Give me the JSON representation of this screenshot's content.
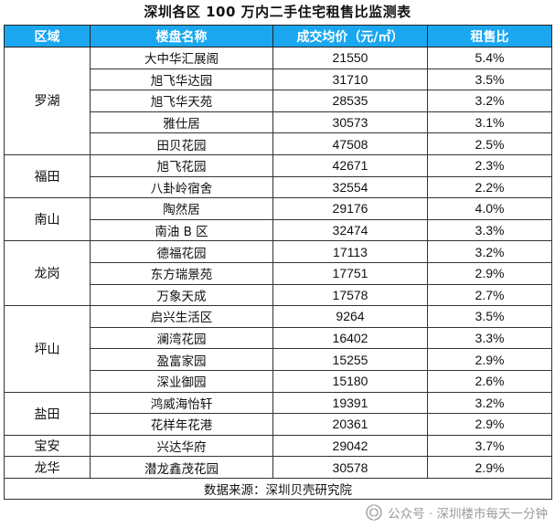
{
  "title": "深圳各区 100 万内二手住宅租售比监测表",
  "columns": {
    "district": "区域",
    "estate": "楼盘名称",
    "price": "成交均价（元/㎡）",
    "ratio": "租售比"
  },
  "rows": [
    {
      "district": "罗湖",
      "estate": "大中华汇展阁",
      "price": "21550",
      "ratio": "5.4%"
    },
    {
      "district": "罗湖",
      "estate": "旭飞华达园",
      "price": "31710",
      "ratio": "3.5%"
    },
    {
      "district": "罗湖",
      "estate": "旭飞华天苑",
      "price": "28535",
      "ratio": "3.2%"
    },
    {
      "district": "罗湖",
      "estate": "雅仕居",
      "price": "30573",
      "ratio": "3.1%"
    },
    {
      "district": "罗湖",
      "estate": "田贝花园",
      "price": "47508",
      "ratio": "2.5%"
    },
    {
      "district": "福田",
      "estate": "旭飞花园",
      "price": "42671",
      "ratio": "2.3%"
    },
    {
      "district": "福田",
      "estate": "八卦岭宿舍",
      "price": "32554",
      "ratio": "2.2%"
    },
    {
      "district": "南山",
      "estate": "陶然居",
      "price": "29176",
      "ratio": "4.0%"
    },
    {
      "district": "南山",
      "estate": "南油 B 区",
      "price": "32474",
      "ratio": "3.3%"
    },
    {
      "district": "龙岗",
      "estate": "德福花园",
      "price": "17113",
      "ratio": "3.2%"
    },
    {
      "district": "龙岗",
      "estate": "东方瑞景苑",
      "price": "17751",
      "ratio": "2.9%"
    },
    {
      "district": "龙岗",
      "estate": "万象天成",
      "price": "17578",
      "ratio": "2.7%"
    },
    {
      "district": "坪山",
      "estate": "启兴生活区",
      "price": "9264",
      "ratio": "3.5%"
    },
    {
      "district": "坪山",
      "estate": "澜湾花园",
      "price": "16402",
      "ratio": "3.3%"
    },
    {
      "district": "坪山",
      "estate": "盈富家园",
      "price": "15255",
      "ratio": "2.9%"
    },
    {
      "district": "坪山",
      "estate": "深业御园",
      "price": "15180",
      "ratio": "2.6%"
    },
    {
      "district": "盐田",
      "estate": "鸿威海怡轩",
      "price": "19391",
      "ratio": "3.2%"
    },
    {
      "district": "盐田",
      "estate": "花样年花港",
      "price": "20361",
      "ratio": "2.9%"
    },
    {
      "district": "宝安",
      "estate": "兴达华府",
      "price": "29042",
      "ratio": "3.7%"
    },
    {
      "district": "龙华",
      "estate": "潜龙鑫茂花园",
      "price": "30578",
      "ratio": "2.9%"
    }
  ],
  "source": "数据来源：深圳贝壳研究院",
  "watermark": {
    "icon": "wechat-official-account-icon",
    "text": "公众号 · 深圳楼市每天一分钟"
  },
  "colors": {
    "header_bg": "#1aa7f0",
    "header_text": "#ffffff",
    "border": "#333333"
  }
}
